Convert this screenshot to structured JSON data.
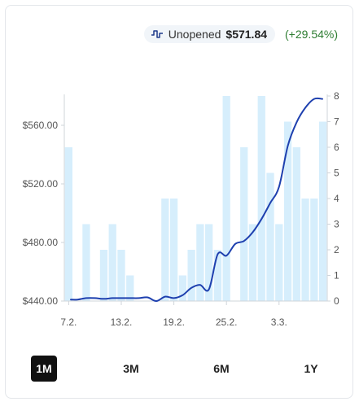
{
  "legend": {
    "icon": "price-trend-icon",
    "name": "Unopened",
    "price": "$571.84",
    "change": "(+29.54%)",
    "change_color": "#2e7d32"
  },
  "range_buttons": [
    {
      "label": "1M",
      "active": true
    },
    {
      "label": "3M",
      "active": false
    },
    {
      "label": "6M",
      "active": false
    },
    {
      "label": "1Y",
      "active": false
    }
  ],
  "chart_data": {
    "type": "bar+line",
    "title": "",
    "xlabel": "",
    "ylabel": "",
    "x_tick_labels": [
      "7.2.",
      "13.2.",
      "19.2.",
      "25.2.",
      "3.3."
    ],
    "left_axis": {
      "range": [
        440,
        580
      ],
      "ticks": [
        440,
        480,
        520,
        560
      ],
      "tick_labels": [
        "$440.00",
        "$480.00",
        "$520.00",
        "$560.00"
      ]
    },
    "right_axis": {
      "range": [
        0,
        8
      ],
      "ticks": [
        0,
        1,
        2,
        3,
        4,
        5,
        6,
        7,
        8
      ],
      "tick_labels": [
        "0",
        "1",
        "2",
        "3",
        "4",
        "5",
        "6",
        "7",
        "8"
      ]
    },
    "bar_series": {
      "axis": "right",
      "color": "#d6eefc",
      "values": [
        6,
        0,
        3,
        0,
        2,
        3,
        2,
        1,
        0,
        0,
        0,
        4,
        4,
        1,
        2,
        3,
        3,
        2,
        8,
        0,
        6,
        3,
        8,
        5,
        3,
        7,
        6,
        4,
        4,
        7
      ]
    },
    "line_series": {
      "axis": "left",
      "color": "#1e40af",
      "values": [
        441,
        441,
        442,
        442,
        441.5,
        442,
        442,
        442,
        442,
        442.5,
        440,
        443,
        442,
        444,
        449,
        451,
        448,
        472,
        471,
        479,
        481,
        487,
        496,
        507,
        518,
        546,
        562,
        572,
        578,
        578
      ]
    },
    "grid": false
  }
}
